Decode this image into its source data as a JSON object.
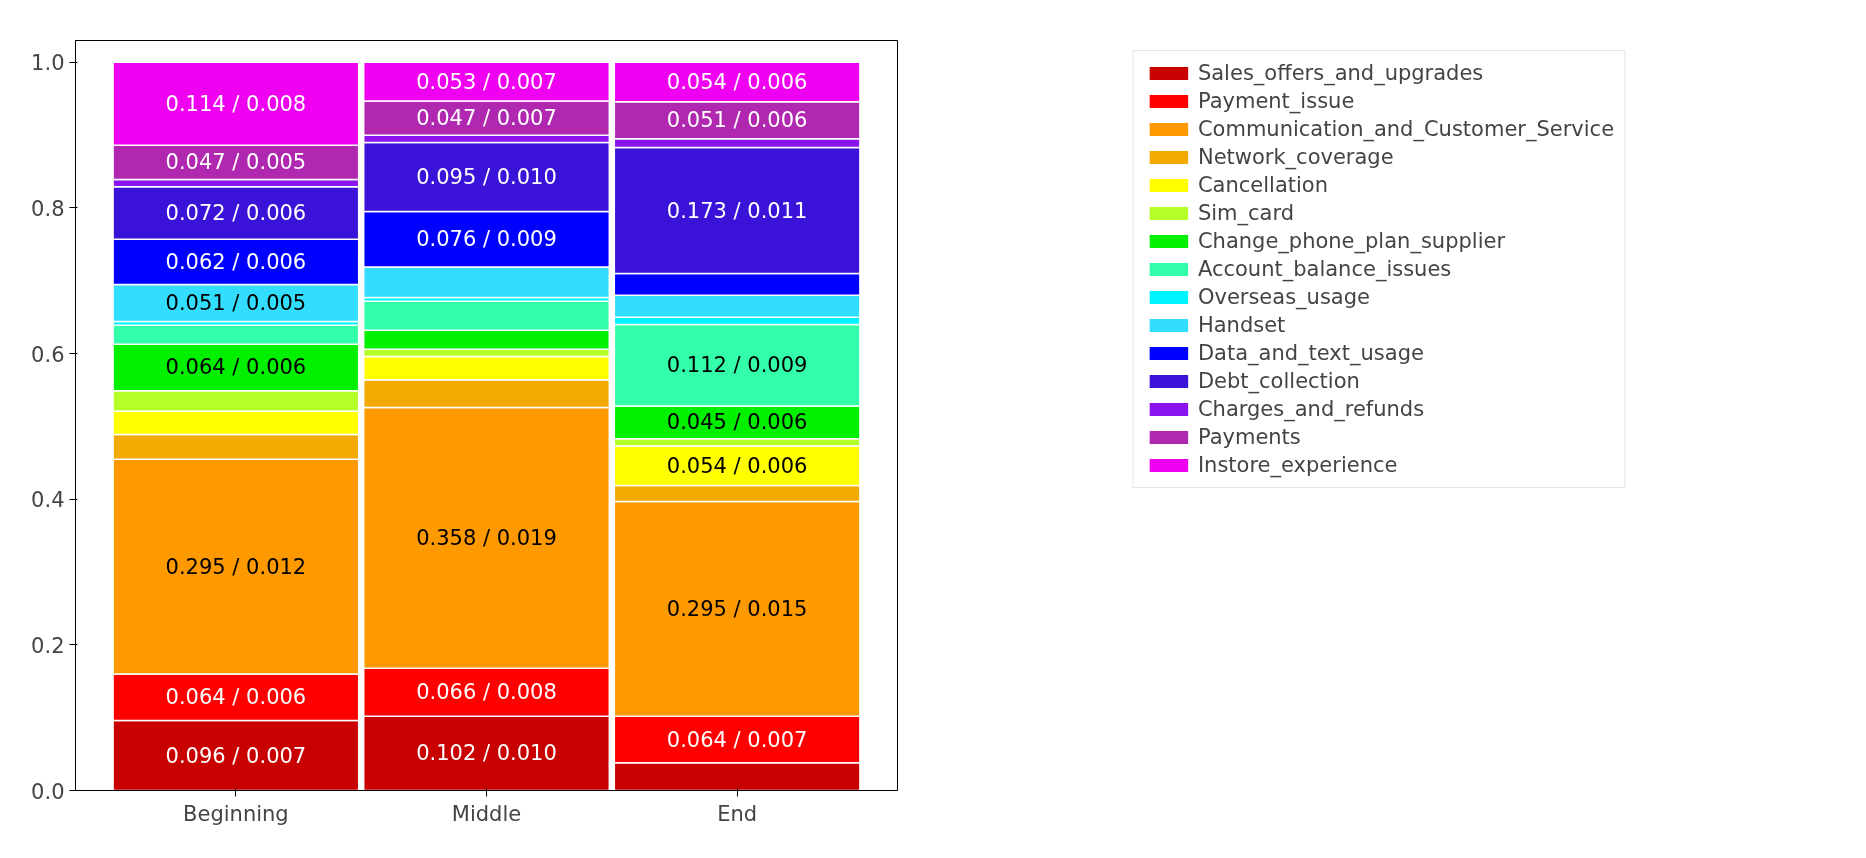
{
  "chart_data": {
    "type": "bar",
    "stacked": true,
    "categories": [
      "Beginning",
      "Middle",
      "End"
    ],
    "ylim": [
      0,
      1.03
    ],
    "yticks": [
      {
        "value": 0,
        "label": "0.0"
      },
      0.2,
      0.4,
      0.6,
      0.8,
      {
        "value": 1,
        "label": "1.0"
      }
    ],
    "grid": false,
    "legend": "right",
    "series": [
      {
        "name": "Sales_offers_and_upgrades",
        "color": "#c80000",
        "values": [
          0.096,
          0.102,
          0.038
        ],
        "value_labels": [
          "0.096 / 0.007",
          "0.102 / 0.010",
          null
        ]
      },
      {
        "name": "Payment_issue",
        "color": "#ff0000",
        "values": [
          0.064,
          0.066,
          0.064
        ],
        "value_labels": [
          "0.064 / 0.006",
          "0.066 / 0.008",
          "0.064 / 0.007"
        ]
      },
      {
        "name": "Communication_and_Customer_Service",
        "color": "#ff9900",
        "values": [
          0.295,
          0.358,
          0.295
        ],
        "value_labels": [
          "0.295 / 0.012",
          "0.358 / 0.019",
          "0.295 / 0.015"
        ]
      },
      {
        "name": "Network_coverage",
        "color": "#f2a900",
        "values": [
          0.034,
          0.038,
          0.022
        ],
        "value_labels": [
          null,
          null,
          null
        ]
      },
      {
        "name": "Cancellation",
        "color": "#ffff00",
        "values": [
          0.032,
          0.032,
          0.054
        ],
        "value_labels": [
          null,
          null,
          "0.054 / 0.006"
        ]
      },
      {
        "name": "Sim_card",
        "color": "#b4ff28",
        "values": [
          0.028,
          0.01,
          0.01
        ],
        "value_labels": [
          null,
          null,
          null
        ]
      },
      {
        "name": "Change_phone_plan_supplier",
        "color": "#00f000",
        "values": [
          0.064,
          0.026,
          0.045
        ],
        "value_labels": [
          "0.064 / 0.006",
          null,
          "0.045 / 0.006"
        ]
      },
      {
        "name": "Account_balance_issues",
        "color": "#33ffaa",
        "values": [
          0.026,
          0.04,
          0.112
        ],
        "value_labels": [
          null,
          null,
          "0.112 / 0.009"
        ]
      },
      {
        "name": "Overseas_usage",
        "color": "#00f4ff",
        "values": [
          0.005,
          0.005,
          0.01
        ],
        "value_labels": [
          null,
          null,
          null
        ]
      },
      {
        "name": "Handset",
        "color": "#33ddff",
        "values": [
          0.051,
          0.042,
          0.03
        ],
        "value_labels": [
          "0.051 / 0.005",
          null,
          null
        ]
      },
      {
        "name": "Data_and_text_usage",
        "color": "#0000ff",
        "values": [
          0.062,
          0.076,
          0.03
        ],
        "value_labels": [
          "0.062 / 0.006",
          "0.076 / 0.009",
          null
        ]
      },
      {
        "name": "Debt_collection",
        "color": "#3a12d8",
        "values": [
          0.072,
          0.095,
          0.173
        ],
        "value_labels": [
          "0.072 / 0.006",
          "0.095 / 0.010",
          "0.173 / 0.011"
        ]
      },
      {
        "name": "Charges_and_refunds",
        "color": "#8a14f0",
        "values": [
          0.01,
          0.01,
          0.012
        ],
        "value_labels": [
          null,
          null,
          null
        ]
      },
      {
        "name": "Payments",
        "color": "#b028b0",
        "values": [
          0.047,
          0.047,
          0.051
        ],
        "value_labels": [
          "0.047 / 0.005",
          "0.047 / 0.007",
          "0.051 / 0.006"
        ]
      },
      {
        "name": "Instore_experience",
        "color": "#f000f0",
        "values": [
          0.114,
          0.053,
          0.054
        ],
        "value_labels": [
          "0.114 / 0.008",
          "0.053 / 0.007",
          "0.054 / 0.006"
        ]
      }
    ]
  }
}
